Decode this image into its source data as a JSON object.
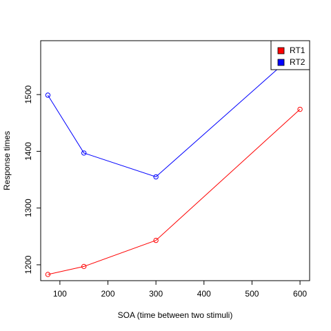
{
  "chart_data": {
    "type": "line",
    "title": "",
    "xlabel": "SOA (time between two stimuli)",
    "ylabel": "Response times",
    "x": [
      75,
      150,
      300,
      600
    ],
    "xlim": [
      60,
      620
    ],
    "ylim": [
      1172,
      1595
    ],
    "xticks": [
      100,
      200,
      300,
      400,
      500,
      600
    ],
    "yticks": [
      1200,
      1300,
      1400,
      1500
    ],
    "legend_position": "top-right",
    "series": [
      {
        "name": "RT1",
        "color": "#ff0000",
        "values": [
          1183,
          1197,
          1243,
          1474
        ]
      },
      {
        "name": "RT2",
        "color": "#0000ff",
        "values": [
          1499,
          1397,
          1355,
          1580
        ]
      }
    ]
  }
}
